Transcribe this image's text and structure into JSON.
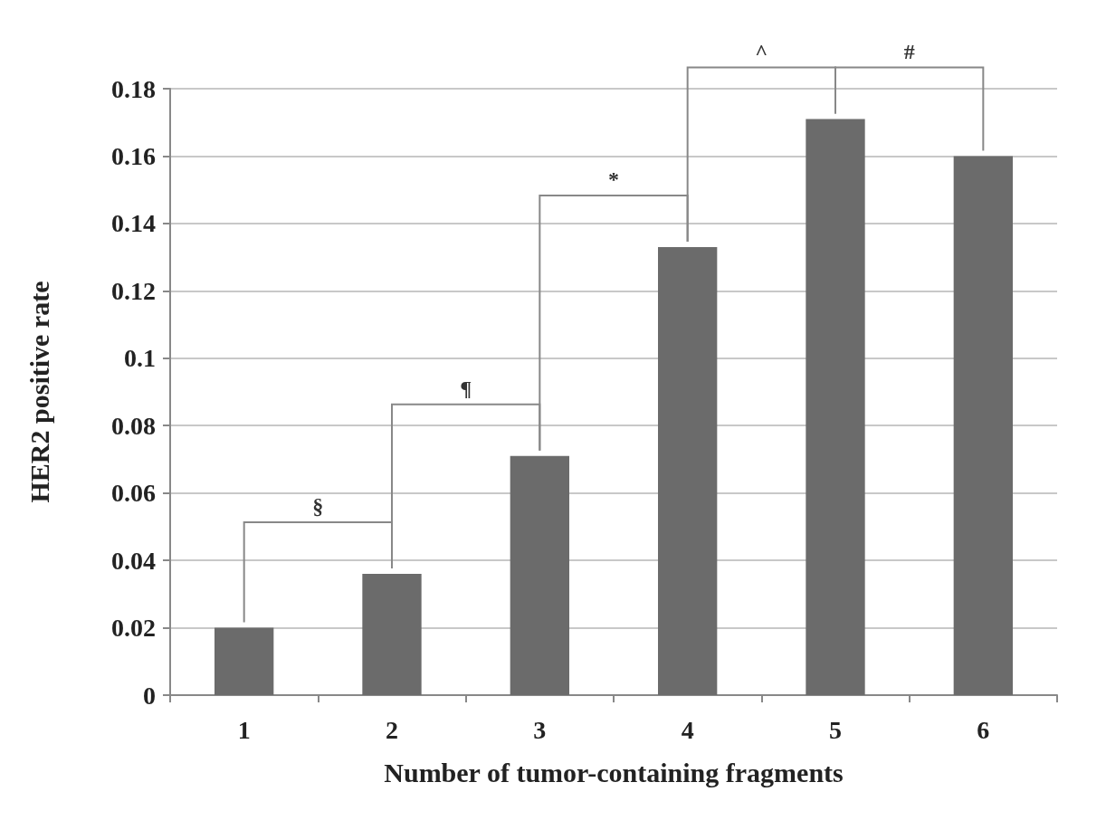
{
  "chart_data": {
    "type": "bar",
    "xlabel": "Number of tumor-containing fragments",
    "ylabel": "HER2 positive rate",
    "categories": [
      "1",
      "2",
      "3",
      "4",
      "5",
      "6"
    ],
    "values": [
      0.02,
      0.036,
      0.071,
      0.133,
      0.171,
      0.16
    ],
    "color": "#6b6b6b",
    "ylim": [
      0,
      0.18
    ],
    "yticks": [
      0,
      0.02,
      0.04,
      0.06,
      0.08,
      0.1,
      0.12,
      0.14,
      0.16,
      0.18
    ],
    "grid": "y",
    "annotations": [
      "§",
      "¶",
      "*",
      "^",
      "#"
    ]
  }
}
